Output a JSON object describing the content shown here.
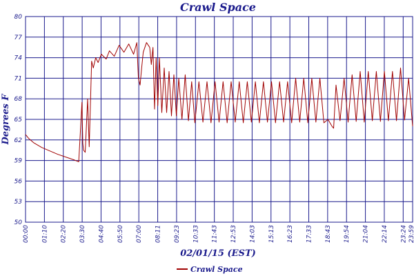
{
  "chart_data": {
    "type": "line",
    "title": "Crawl Space",
    "xlabel": "02/01/15 (EST)",
    "ylabel": "Degrees F",
    "ylim": [
      50,
      80
    ],
    "yticks": [
      "80",
      "77",
      "74",
      "71",
      "68",
      "65",
      "62",
      "59",
      "56",
      "53",
      "50"
    ],
    "xticks": [
      "00:00",
      "01:10",
      "02:20",
      "03:30",
      "04:40",
      "05:50",
      "07:00",
      "08:11",
      "09:23",
      "10:33",
      "11:43",
      "12:53",
      "14:03",
      "15:13",
      "16:23",
      "17:33",
      "18:43",
      "19:54",
      "21:04",
      "22:14",
      "23:24",
      "23:59"
    ],
    "grid": true,
    "legend_position": "bottom-left",
    "colors": {
      "series": "#a00000",
      "grid": "#1a1a8c",
      "text": "#1a1a8c"
    },
    "series": [
      {
        "name": "Crawl Space",
        "x_hours": [
          0.0,
          0.2,
          0.5,
          1.0,
          1.5,
          2.0,
          2.5,
          3.0,
          3.3,
          3.5,
          3.55,
          3.6,
          3.7,
          3.85,
          3.95,
          4.1,
          4.2,
          4.35,
          4.5,
          4.7,
          5.0,
          5.2,
          5.5,
          5.8,
          6.1,
          6.4,
          6.7,
          6.9,
          7.0,
          7.1,
          7.2,
          7.3,
          7.5,
          7.7,
          7.8,
          7.9,
          8.0,
          8.1,
          8.2,
          8.3,
          8.45,
          8.6,
          8.75,
          8.9,
          9.05,
          9.2,
          9.35,
          9.5,
          9.7,
          9.9,
          10.1,
          10.3,
          10.5,
          10.75,
          11.0,
          11.25,
          11.5,
          11.75,
          12.0,
          12.25,
          12.5,
          12.75,
          13.0,
          13.25,
          13.5,
          13.75,
          14.0,
          14.25,
          14.5,
          14.75,
          15.0,
          15.25,
          15.5,
          15.75,
          16.0,
          16.25,
          16.5,
          16.75,
          17.0,
          17.25,
          17.5,
          17.75,
          18.0,
          18.25,
          18.5,
          18.75,
          19.0,
          19.1,
          19.25,
          19.5,
          19.75,
          20.0,
          20.25,
          20.5,
          20.75,
          21.0,
          21.25,
          21.5,
          21.75,
          22.0,
          22.25,
          22.5,
          22.75,
          23.0,
          23.25,
          23.5,
          23.75,
          24.0
        ],
        "values": [
          62.8,
          62.2,
          61.6,
          60.9,
          60.4,
          59.9,
          59.5,
          59.1,
          58.8,
          67.5,
          61.5,
          60.5,
          60.2,
          68.0,
          61.0,
          73.5,
          72.5,
          74.0,
          73.3,
          74.5,
          73.8,
          75.0,
          74.2,
          75.8,
          74.8,
          76.0,
          74.5,
          76.2,
          71.0,
          70.0,
          72.5,
          74.8,
          76.2,
          75.5,
          73.0,
          75.5,
          66.5,
          74.0,
          67.0,
          74.0,
          66.0,
          72.5,
          66.0,
          72.0,
          65.5,
          71.5,
          65.5,
          71.0,
          65.0,
          71.5,
          64.8,
          70.5,
          64.5,
          70.5,
          64.6,
          70.5,
          64.5,
          70.5,
          64.6,
          70.5,
          64.5,
          70.5,
          64.6,
          70.5,
          64.5,
          70.5,
          64.6,
          70.5,
          64.5,
          70.5,
          64.6,
          70.5,
          64.5,
          70.5,
          64.6,
          70.5,
          64.5,
          71.0,
          64.6,
          71.0,
          64.5,
          71.0,
          64.6,
          71.0,
          64.5,
          65.0,
          64.0,
          63.7,
          70.0,
          64.8,
          71.0,
          64.6,
          71.5,
          64.7,
          72.0,
          64.6,
          72.0,
          64.8,
          72.0,
          64.7,
          72.0,
          64.8,
          72.0,
          64.8,
          72.5,
          64.9,
          71.0,
          64.0
        ]
      }
    ]
  }
}
